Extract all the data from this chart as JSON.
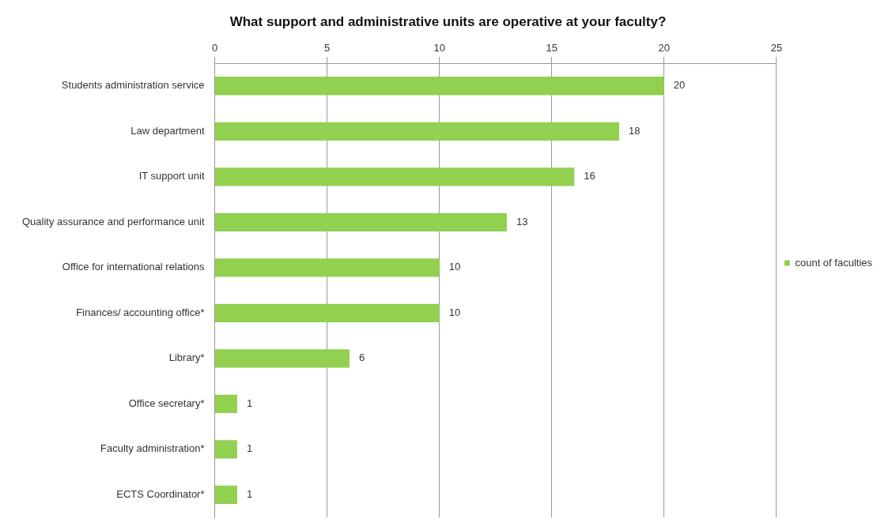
{
  "chart_data": {
    "type": "bar",
    "orientation": "horizontal",
    "title": "What support and administrative units are operative at your faculty?",
    "categories": [
      "Students administration service",
      "Law department",
      "IT support unit",
      "Quality assurance and performance unit",
      "Office for international relations",
      "Finances/ accounting office*",
      "Library*",
      "Office secretary*",
      "Faculty administration*",
      "ECTS Coordinator*"
    ],
    "series": [
      {
        "name": "count of faculties",
        "color": "#92d050",
        "values": [
          20,
          18,
          16,
          13,
          10,
          10,
          6,
          1,
          1,
          1
        ]
      }
    ],
    "xlim": [
      0,
      25
    ],
    "xticks": [
      0,
      5,
      10,
      15,
      20,
      25
    ],
    "grid": "x",
    "legend": "right",
    "data_labels": true
  }
}
